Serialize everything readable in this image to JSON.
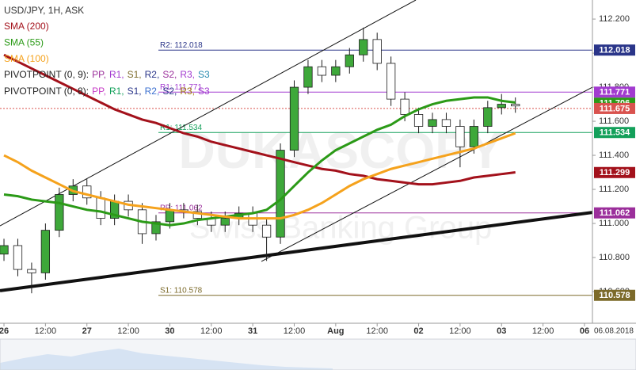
{
  "chart_data": {
    "type": "candlestick",
    "title": "USD/JPY, 1H, ASK",
    "x": [
      0,
      4,
      8,
      12,
      16,
      20,
      24,
      28,
      32,
      36,
      40,
      44,
      48,
      52,
      56,
      60,
      64,
      68,
      72,
      76,
      80,
      84,
      88,
      92,
      96,
      100,
      104,
      108,
      112,
      116,
      120,
      124,
      128,
      132,
      136,
      140,
      144,
      148
    ],
    "open": [
      110.82,
      110.87,
      110.73,
      110.71,
      110.96,
      111.17,
      111.22,
      111.15,
      111.03,
      111.13,
      111.08,
      110.94,
      111.01,
      111.08,
      111.07,
      111.03,
      110.99,
      111.03,
      111.06,
      110.99,
      110.92,
      111.43,
      111.8,
      111.92,
      111.87,
      111.92,
      111.99,
      112.08,
      111.94,
      111.73,
      111.64,
      111.57,
      111.61,
      111.57,
      111.45,
      111.57,
      111.68,
      111.7
    ],
    "high": [
      110.91,
      110.91,
      110.77,
      111.0,
      111.21,
      111.26,
      111.26,
      111.19,
      111.17,
      111.17,
      111.12,
      111.05,
      111.12,
      111.12,
      111.11,
      111.07,
      111.07,
      111.1,
      111.1,
      111.03,
      111.47,
      111.84,
      111.96,
      111.96,
      111.96,
      112.03,
      112.15,
      112.12,
      111.98,
      111.77,
      111.68,
      111.65,
      111.65,
      111.61,
      111.61,
      111.72,
      111.76,
      111.74
    ],
    "low": [
      110.78,
      110.69,
      110.59,
      110.67,
      110.92,
      111.13,
      111.11,
      110.99,
      110.99,
      111.04,
      110.88,
      110.9,
      110.97,
      111.03,
      110.99,
      110.95,
      110.95,
      110.99,
      110.95,
      110.78,
      110.88,
      111.39,
      111.76,
      111.83,
      111.83,
      111.88,
      111.95,
      111.9,
      111.69,
      111.6,
      111.53,
      111.53,
      111.53,
      111.33,
      111.41,
      111.53,
      111.64,
      111.65
    ],
    "close": [
      110.87,
      110.73,
      110.71,
      110.96,
      111.17,
      111.22,
      111.15,
      111.03,
      111.13,
      111.08,
      110.94,
      111.01,
      111.08,
      111.07,
      111.03,
      110.99,
      111.03,
      111.06,
      110.99,
      110.92,
      111.43,
      111.8,
      111.92,
      111.87,
      111.92,
      111.99,
      112.08,
      111.94,
      111.73,
      111.64,
      111.57,
      111.61,
      111.57,
      111.45,
      111.57,
      111.68,
      111.7,
      111.69
    ],
    "up_color": "#3ea83a",
    "down_color": "#1d1d1d",
    "series": [
      {
        "name": "SMA (200)",
        "color": "#a3111b",
        "last_label": {
          "value": 111.299,
          "label": "111.299"
        },
        "values": [
          111.99,
          111.95,
          111.91,
          111.87,
          111.83,
          111.79,
          111.75,
          111.71,
          111.67,
          111.64,
          111.61,
          111.59,
          111.56,
          111.53,
          111.51,
          111.48,
          111.46,
          111.44,
          111.42,
          111.4,
          111.38,
          111.36,
          111.34,
          111.32,
          111.31,
          111.29,
          111.28,
          111.26,
          111.25,
          111.24,
          111.23,
          111.23,
          111.24,
          111.25,
          111.27,
          111.28,
          111.29,
          111.3
        ]
      },
      {
        "name": "SMA (55)",
        "color": "#2b9a17",
        "last_label": {
          "value": 111.706,
          "label": "111.706"
        },
        "values": [
          111.17,
          111.16,
          111.14,
          111.13,
          111.12,
          111.1,
          111.08,
          111.07,
          111.05,
          111.03,
          111.01,
          111.0,
          110.99,
          111.0,
          111.02,
          111.03,
          111.04,
          111.05,
          111.06,
          111.08,
          111.14,
          111.22,
          111.3,
          111.37,
          111.43,
          111.47,
          111.51,
          111.55,
          111.58,
          111.63,
          111.67,
          111.7,
          111.72,
          111.73,
          111.74,
          111.74,
          111.72,
          111.71
        ]
      },
      {
        "name": "SMA (100)",
        "color": "#f5a21c",
        "last_label": {
          "value": 111.53,
          "label": "111.534"
        },
        "values": [
          111.4,
          111.36,
          111.31,
          111.27,
          111.23,
          111.19,
          111.17,
          111.15,
          111.13,
          111.11,
          111.1,
          111.09,
          111.08,
          111.07,
          111.06,
          111.05,
          111.04,
          111.03,
          111.03,
          111.03,
          111.03,
          111.05,
          111.08,
          111.12,
          111.17,
          111.22,
          111.26,
          111.29,
          111.32,
          111.34,
          111.36,
          111.38,
          111.4,
          111.42,
          111.44,
          111.47,
          111.5,
          111.53
        ]
      }
    ],
    "ylim": [
      110.414,
      112.312
    ],
    "yticks": [
      {
        "value": 110.6,
        "label": "110.600"
      },
      {
        "value": 110.8,
        "label": "110.800"
      },
      {
        "value": 111.0,
        "label": "111.000"
      },
      {
        "value": 111.2,
        "label": "111.200"
      },
      {
        "value": 111.4,
        "label": "111.400"
      },
      {
        "value": 111.6,
        "label": "111.600"
      },
      {
        "value": 111.8,
        "label": "111.800"
      },
      {
        "value": 112.0,
        "label": "112.000"
      },
      {
        "value": 112.2,
        "label": "112.200"
      }
    ],
    "xlim": [
      -1.15,
      170.3
    ],
    "xticks": [
      {
        "value": 0,
        "label": "26"
      },
      {
        "value": 12,
        "label": "12:00"
      },
      {
        "value": 24,
        "label": "27"
      },
      {
        "value": 36,
        "label": "12:00"
      },
      {
        "value": 48,
        "label": "30"
      },
      {
        "value": 60,
        "label": "12:00"
      },
      {
        "value": 72,
        "label": "31"
      },
      {
        "value": 84,
        "label": "12:00"
      },
      {
        "value": 96,
        "label": "Aug"
      },
      {
        "value": 108,
        "label": "12:00"
      },
      {
        "value": 120,
        "label": "02"
      },
      {
        "value": 132,
        "label": "12:00"
      },
      {
        "value": 144,
        "label": "03"
      },
      {
        "value": 156,
        "label": "12:00"
      },
      {
        "value": 168,
        "label": "06"
      }
    ],
    "levels": [
      {
        "name": "R2: 112.018",
        "value": {
          "value": 112.018,
          "label": "112.018"
        },
        "color": "#2a3589"
      },
      {
        "name": "R1: 111.771",
        "value": {
          "value": 111.771,
          "label": "111.771"
        },
        "color": "#a23bd0"
      },
      {
        "name": "R1: 111.534",
        "value": {
          "value": 111.534,
          "label": "111.534"
        },
        "color": "#13a05a"
      },
      {
        "name": "PP: 111.062",
        "value": {
          "value": 111.062,
          "label": "111.062"
        },
        "color": "#9b2f9b"
      },
      {
        "name": "S1: 110.578",
        "value": {
          "value": 110.578,
          "label": "110.578"
        },
        "color": "#7c6a2a"
      }
    ],
    "current": {
      "value": 111.675,
      "label": "111.675",
      "color": "#d9534f"
    },
    "trendlines": [
      {
        "x": [
          -1.15,
          170.3
        ],
        "values": [
          110.605,
          111.065
        ],
        "width": 4
      },
      {
        "x": [
          -1.15,
          119.2
        ],
        "values": [
          110.986,
          112.312
        ],
        "width": 1
      },
      {
        "x": [
          74.5,
          170.3
        ],
        "values": [
          110.777,
          111.8
        ],
        "width": 1
      }
    ],
    "pivot_legends": [
      [
        {
          "text": "PIVOTPOINT (0, 9):",
          "color": "#222222"
        },
        {
          "text": "PP,",
          "color": "#9b2f9b"
        },
        {
          "text": "R1,",
          "color": "#a23bd0"
        },
        {
          "text": "S1,",
          "color": "#7c6a2a"
        },
        {
          "text": "R2,",
          "color": "#2a3589"
        },
        {
          "text": "S2,",
          "color": "#9b2f9b"
        },
        {
          "text": "R3,",
          "color": "#a23bd0"
        },
        {
          "text": "S3",
          "color": "#2a8bb0"
        }
      ],
      [
        {
          "text": "PIVOTPOINT (0, 8):",
          "color": "#222222"
        },
        {
          "text": "PP,",
          "color": "#c63ac6"
        },
        {
          "text": "R1,",
          "color": "#13a05a"
        },
        {
          "text": "S1,",
          "color": "#2a3589"
        },
        {
          "text": "R2,",
          "color": "#3a6fd0"
        },
        {
          "text": "S2,",
          "color": "#2a3589"
        },
        {
          "text": "R3,",
          "color": "#a07a10"
        },
        {
          "text": "S3",
          "color": "#a23bd0"
        }
      ]
    ],
    "watermark": [
      "DUKASCOPY",
      "Swiss Banking Group"
    ],
    "date": "06.08.2018"
  }
}
